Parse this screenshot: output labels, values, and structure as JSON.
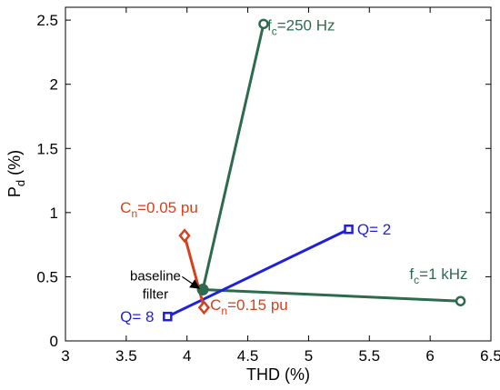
{
  "chart_data": {
    "type": "line",
    "xlabel": "THD (%)",
    "ylabel": {
      "main": "P",
      "sub": "d",
      "rest": " (%)"
    },
    "xlim": [
      3,
      6.5
    ],
    "ylim": [
      0,
      2.6
    ],
    "xticks": [
      "3",
      "3.5",
      "4",
      "4.5",
      "5",
      "5.5",
      "6",
      "6.5"
    ],
    "yticks": [
      "0",
      "0.5",
      "1",
      "1.5",
      "2",
      "2.5"
    ],
    "grid": false,
    "baseline": {
      "x": 4.13,
      "y": 0.4,
      "color": "#2e6b4e"
    },
    "series": [
      {
        "id": "fc",
        "color": "#2e6b4e",
        "marker": "circle",
        "lines": [
          {
            "from": [
              4.13,
              0.4
            ],
            "to": [
              4.63,
              2.47
            ]
          },
          {
            "from": [
              4.13,
              0.4
            ],
            "to": [
              6.25,
              0.31
            ]
          }
        ],
        "endpoints": [
          [
            4.63,
            2.47
          ],
          [
            6.25,
            0.31
          ]
        ]
      },
      {
        "id": "q",
        "color": "#1f1fe0",
        "marker": "square",
        "lines": [
          {
            "from": [
              3.84,
              0.19
            ],
            "to": [
              5.33,
              0.87
            ]
          }
        ],
        "endpoints": [
          [
            3.84,
            0.19
          ],
          [
            5.33,
            0.87
          ]
        ]
      },
      {
        "id": "cn",
        "color": "#d2421c",
        "marker": "diamond",
        "lines": [
          {
            "from": [
              3.98,
              0.82
            ],
            "to": [
              4.14,
              0.26
            ]
          }
        ],
        "endpoints": [
          [
            3.98,
            0.82
          ],
          [
            4.14,
            0.26
          ]
        ]
      }
    ],
    "annotations": [
      {
        "id": "fc-250",
        "base": "f",
        "sub": "c",
        "rest": "=250 Hz",
        "color": "#2e6b4e",
        "x": 4.66,
        "y": 2.42
      },
      {
        "id": "fc-1k",
        "base": "f",
        "sub": "c",
        "rest": "=1 kHz",
        "color": "#2e6b4e",
        "x": 5.83,
        "y": 0.48
      },
      {
        "id": "q-2",
        "base": "Q= 2",
        "sub": "",
        "rest": "",
        "color": "#1f1fe0",
        "x": 5.4,
        "y": 0.83
      },
      {
        "id": "q-8",
        "base": "Q= 8",
        "sub": "",
        "rest": "",
        "color": "#1f1fe0",
        "x": 3.45,
        "y": 0.15
      },
      {
        "id": "cn-005",
        "base": "C",
        "sub": "n",
        "rest": "=0.05 pu",
        "color": "#d2421c",
        "x": 3.45,
        "y": 1.0
      },
      {
        "id": "cn-015",
        "base": "C",
        "sub": "n",
        "rest": "=0.15 pu",
        "color": "#d2421c",
        "x": 4.19,
        "y": 0.24
      }
    ],
    "callout": {
      "lines": [
        "baseline",
        "filter"
      ],
      "x": 3.74,
      "y": 0.47,
      "arrow_from": [
        3.96,
        0.5
      ],
      "arrow_to": [
        4.1,
        0.41
      ]
    }
  }
}
